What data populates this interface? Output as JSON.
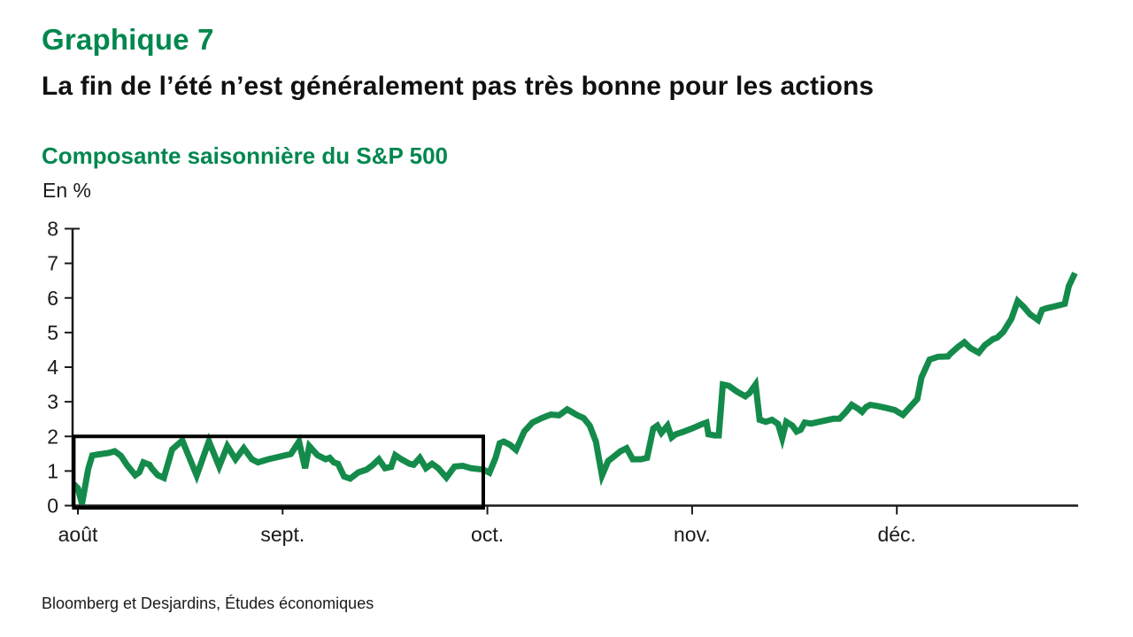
{
  "header": {
    "kicker": "Graphique 7",
    "title": "La fin de l’été n’est généralement pas très bonne pour les actions"
  },
  "footer": {
    "source": "Bloomberg et Desjardins, Études économiques"
  },
  "colors": {
    "heading_green": "#00874E",
    "line_green": "#148B4B",
    "axis": "#1a1a1a",
    "text": "#1a1a1a",
    "box": "#000000",
    "background": "#ffffff"
  },
  "chart_data": {
    "type": "line",
    "title": "Composante saisonnière du S&P 500",
    "unit_label": "En %",
    "xlabel": "",
    "ylabel": "En %",
    "ylim": [
      0,
      8
    ],
    "yticks": [
      0,
      1,
      2,
      3,
      4,
      5,
      6,
      7,
      8
    ],
    "xtick_labels": [
      "août",
      "sept.",
      "oct.",
      "nov.",
      "déc."
    ],
    "xtick_positions": [
      0,
      1,
      2,
      3,
      4
    ],
    "x_unit": "months from août tick (0 = août, 1 = sept., 2 = oct., 3 = nov., 4 = déc.)",
    "xlim": [
      -0.03,
      4.89
    ],
    "grid": false,
    "legend": "none",
    "annotation_box": {
      "x0": -0.02,
      "x1": 1.98,
      "y0": 0,
      "y1": 2
    },
    "series": [
      {
        "name": "Composante saisonnière du S&P 500",
        "color": "#148B4B",
        "points": [
          [
            -0.02,
            0.62
          ],
          [
            0.0,
            0.5
          ],
          [
            0.02,
            0.05
          ],
          [
            0.05,
            1.05
          ],
          [
            0.07,
            1.45
          ],
          [
            0.1,
            1.48
          ],
          [
            0.15,
            1.52
          ],
          [
            0.18,
            1.57
          ],
          [
            0.21,
            1.44
          ],
          [
            0.24,
            1.17
          ],
          [
            0.28,
            0.88
          ],
          [
            0.3,
            0.96
          ],
          [
            0.32,
            1.25
          ],
          [
            0.35,
            1.18
          ],
          [
            0.36,
            1.08
          ],
          [
            0.39,
            0.88
          ],
          [
            0.42,
            0.8
          ],
          [
            0.46,
            1.62
          ],
          [
            0.51,
            1.88
          ],
          [
            0.58,
            0.87
          ],
          [
            0.64,
            1.86
          ],
          [
            0.69,
            1.13
          ],
          [
            0.73,
            1.72
          ],
          [
            0.77,
            1.34
          ],
          [
            0.81,
            1.66
          ],
          [
            0.85,
            1.34
          ],
          [
            0.88,
            1.25
          ],
          [
            0.93,
            1.34
          ],
          [
            0.99,
            1.42
          ],
          [
            1.04,
            1.49
          ],
          [
            1.08,
            1.85
          ],
          [
            1.11,
            1.08
          ],
          [
            1.13,
            1.72
          ],
          [
            1.17,
            1.46
          ],
          [
            1.21,
            1.34
          ],
          [
            1.23,
            1.38
          ],
          [
            1.25,
            1.25
          ],
          [
            1.27,
            1.21
          ],
          [
            1.3,
            0.84
          ],
          [
            1.33,
            0.78
          ],
          [
            1.37,
            0.96
          ],
          [
            1.41,
            1.04
          ],
          [
            1.44,
            1.17
          ],
          [
            1.47,
            1.34
          ],
          [
            1.5,
            1.08
          ],
          [
            1.53,
            1.12
          ],
          [
            1.55,
            1.46
          ],
          [
            1.58,
            1.34
          ],
          [
            1.62,
            1.21
          ],
          [
            1.64,
            1.18
          ],
          [
            1.67,
            1.38
          ],
          [
            1.7,
            1.08
          ],
          [
            1.73,
            1.21
          ],
          [
            1.76,
            1.08
          ],
          [
            1.8,
            0.81
          ],
          [
            1.84,
            1.13
          ],
          [
            1.88,
            1.15
          ],
          [
            1.92,
            1.08
          ],
          [
            1.98,
            1.04
          ],
          [
            2.01,
            0.95
          ],
          [
            2.04,
            1.38
          ],
          [
            2.06,
            1.8
          ],
          [
            2.08,
            1.85
          ],
          [
            2.11,
            1.76
          ],
          [
            2.14,
            1.61
          ],
          [
            2.18,
            2.14
          ],
          [
            2.22,
            2.4
          ],
          [
            2.27,
            2.54
          ],
          [
            2.31,
            2.63
          ],
          [
            2.35,
            2.61
          ],
          [
            2.39,
            2.78
          ],
          [
            2.44,
            2.61
          ],
          [
            2.47,
            2.53
          ],
          [
            2.5,
            2.31
          ],
          [
            2.53,
            1.85
          ],
          [
            2.56,
            0.87
          ],
          [
            2.59,
            1.29
          ],
          [
            2.61,
            1.38
          ],
          [
            2.65,
            1.57
          ],
          [
            2.68,
            1.66
          ],
          [
            2.71,
            1.34
          ],
          [
            2.75,
            1.34
          ],
          [
            2.78,
            1.38
          ],
          [
            2.81,
            2.23
          ],
          [
            2.83,
            2.31
          ],
          [
            2.85,
            2.1
          ],
          [
            2.88,
            2.31
          ],
          [
            2.9,
            1.97
          ],
          [
            2.92,
            2.06
          ],
          [
            2.96,
            2.14
          ],
          [
            3.0,
            2.23
          ],
          [
            3.05,
            2.36
          ],
          [
            3.07,
            2.4
          ],
          [
            3.08,
            2.06
          ],
          [
            3.11,
            2.03
          ],
          [
            3.13,
            2.03
          ],
          [
            3.15,
            3.5
          ],
          [
            3.18,
            3.46
          ],
          [
            3.22,
            3.29
          ],
          [
            3.26,
            3.16
          ],
          [
            3.28,
            3.25
          ],
          [
            3.31,
            3.5
          ],
          [
            3.33,
            2.48
          ],
          [
            3.36,
            2.42
          ],
          [
            3.39,
            2.48
          ],
          [
            3.42,
            2.36
          ],
          [
            3.44,
            1.95
          ],
          [
            3.46,
            2.42
          ],
          [
            3.49,
            2.31
          ],
          [
            3.51,
            2.14
          ],
          [
            3.53,
            2.19
          ],
          [
            3.55,
            2.4
          ],
          [
            3.58,
            2.37
          ],
          [
            3.62,
            2.42
          ],
          [
            3.65,
            2.46
          ],
          [
            3.69,
            2.51
          ],
          [
            3.72,
            2.51
          ],
          [
            3.75,
            2.7
          ],
          [
            3.78,
            2.91
          ],
          [
            3.81,
            2.8
          ],
          [
            3.83,
            2.71
          ],
          [
            3.85,
            2.85
          ],
          [
            3.87,
            2.91
          ],
          [
            3.91,
            2.87
          ],
          [
            3.95,
            2.82
          ],
          [
            3.99,
            2.76
          ],
          [
            4.03,
            2.62
          ],
          [
            4.06,
            2.82
          ],
          [
            4.1,
            3.08
          ],
          [
            4.12,
            3.7
          ],
          [
            4.16,
            4.22
          ],
          [
            4.2,
            4.3
          ],
          [
            4.25,
            4.31
          ],
          [
            4.26,
            4.38
          ],
          [
            4.3,
            4.59
          ],
          [
            4.33,
            4.72
          ],
          [
            4.36,
            4.55
          ],
          [
            4.4,
            4.42
          ],
          [
            4.43,
            4.64
          ],
          [
            4.47,
            4.81
          ],
          [
            4.49,
            4.85
          ],
          [
            4.52,
            5.02
          ],
          [
            4.56,
            5.4
          ],
          [
            4.59,
            5.91
          ],
          [
            4.62,
            5.74
          ],
          [
            4.65,
            5.53
          ],
          [
            4.69,
            5.36
          ],
          [
            4.71,
            5.66
          ],
          [
            4.73,
            5.7
          ],
          [
            4.76,
            5.74
          ],
          [
            4.8,
            5.8
          ],
          [
            4.82,
            5.83
          ],
          [
            4.84,
            6.34
          ],
          [
            4.87,
            6.72
          ]
        ]
      }
    ]
  }
}
